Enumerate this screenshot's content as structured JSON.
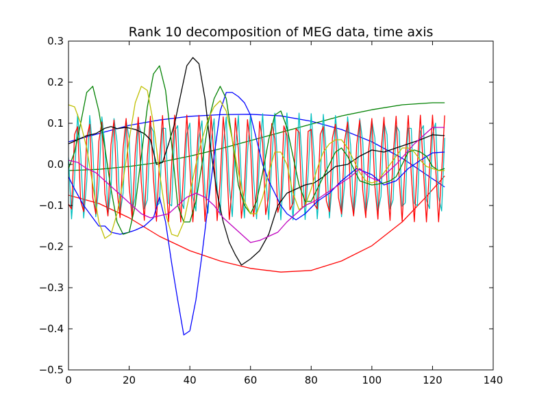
{
  "chart_data": {
    "type": "line",
    "title": "Rank 10 decomposition of MEG data, time axis",
    "xlabel": "",
    "ylabel": "",
    "xlim": [
      0,
      140
    ],
    "ylim": [
      -0.5,
      0.3
    ],
    "grid": false,
    "legend": "none",
    "x_ticks": [
      0,
      20,
      40,
      60,
      80,
      100,
      120,
      140
    ],
    "x_tick_labels": [
      "0",
      "20",
      "40",
      "60",
      "80",
      "100",
      "120",
      "140"
    ],
    "y_ticks": [
      0.3,
      0.2,
      0.1,
      0.0,
      -0.1,
      -0.2,
      -0.3,
      -0.4,
      -0.5
    ],
    "y_tick_labels": [
      "0.3",
      "0.2",
      "0.1",
      "0.0",
      "−0.1",
      "−0.2",
      "−0.3",
      "−0.4",
      "−0.5"
    ],
    "x_start": 0,
    "x_step": 1,
    "series": [
      {
        "name": "red-smooth",
        "color": "#ff0000",
        "points": [
          [
            0,
            -0.075
          ],
          [
            10,
            -0.095
          ],
          [
            20,
            -0.13
          ],
          [
            30,
            -0.175
          ],
          [
            40,
            -0.21
          ],
          [
            50,
            -0.235
          ],
          [
            60,
            -0.253
          ],
          [
            70,
            -0.262
          ],
          [
            80,
            -0.258
          ],
          [
            90,
            -0.235
          ],
          [
            100,
            -0.198
          ],
          [
            110,
            -0.14
          ],
          [
            118,
            -0.078
          ],
          [
            124,
            -0.028
          ]
        ]
      },
      {
        "name": "blue-smooth",
        "color": "#0000ff",
        "points": [
          [
            0,
            0.055
          ],
          [
            10,
            0.075
          ],
          [
            20,
            0.095
          ],
          [
            30,
            0.108
          ],
          [
            40,
            0.117
          ],
          [
            50,
            0.121
          ],
          [
            60,
            0.122
          ],
          [
            70,
            0.118
          ],
          [
            80,
            0.105
          ],
          [
            90,
            0.085
          ],
          [
            100,
            0.055
          ],
          [
            110,
            0.015
          ],
          [
            118,
            -0.025
          ],
          [
            124,
            -0.055
          ]
        ]
      },
      {
        "name": "green-smooth",
        "color": "#008000",
        "points": [
          [
            0,
            -0.015
          ],
          [
            10,
            -0.012
          ],
          [
            20,
            -0.005
          ],
          [
            30,
            0.005
          ],
          [
            40,
            0.02
          ],
          [
            50,
            0.038
          ],
          [
            60,
            0.058
          ],
          [
            70,
            0.078
          ],
          [
            80,
            0.098
          ],
          [
            90,
            0.118
          ],
          [
            100,
            0.133
          ],
          [
            110,
            0.145
          ],
          [
            120,
            0.15
          ],
          [
            124,
            0.15
          ]
        ]
      },
      {
        "name": "cyan-oscillation",
        "color": "#00bfbf",
        "oscillation": {
          "x0": 0,
          "x1": 124,
          "period": 4.05,
          "amplitude": 0.13,
          "center": -0.005,
          "phase": 1.4
        }
      },
      {
        "name": "red-oscillation",
        "color": "#ff0000",
        "oscillation": {
          "x0": 0,
          "x1": 124,
          "period": 4.05,
          "amplitude": 0.13,
          "center": -0.01,
          "phase": 2.3
        }
      },
      {
        "name": "blue-wave",
        "color": "#0000ff",
        "points": [
          [
            0,
            -0.03
          ],
          [
            2,
            -0.06
          ],
          [
            5,
            -0.1
          ],
          [
            8,
            -0.13
          ],
          [
            10,
            -0.15
          ],
          [
            12,
            -0.15
          ],
          [
            14,
            -0.165
          ],
          [
            17,
            -0.17
          ],
          [
            20,
            -0.165
          ],
          [
            22,
            -0.16
          ],
          [
            25,
            -0.15
          ],
          [
            28,
            -0.13
          ],
          [
            30,
            -0.08
          ],
          [
            32,
            -0.14
          ],
          [
            34,
            -0.24
          ],
          [
            36,
            -0.33
          ],
          [
            38,
            -0.415
          ],
          [
            40,
            -0.405
          ],
          [
            42,
            -0.33
          ],
          [
            44,
            -0.22
          ],
          [
            46,
            -0.1
          ],
          [
            48,
            0.02
          ],
          [
            50,
            0.13
          ],
          [
            52,
            0.175
          ],
          [
            54,
            0.175
          ],
          [
            56,
            0.165
          ],
          [
            58,
            0.15
          ],
          [
            60,
            0.12
          ],
          [
            62,
            0.06
          ],
          [
            64,
            0.0
          ],
          [
            66,
            -0.04
          ],
          [
            68,
            -0.07
          ],
          [
            70,
            -0.1
          ],
          [
            72,
            -0.12
          ],
          [
            75,
            -0.135
          ],
          [
            78,
            -0.12
          ],
          [
            82,
            -0.09
          ],
          [
            86,
            -0.07
          ],
          [
            90,
            -0.04
          ],
          [
            95,
            -0.01
          ],
          [
            100,
            -0.025
          ],
          [
            104,
            -0.05
          ],
          [
            108,
            -0.04
          ],
          [
            112,
            -0.01
          ],
          [
            116,
            0.01
          ],
          [
            120,
            0.028
          ],
          [
            124,
            0.03
          ]
        ]
      },
      {
        "name": "black-wave",
        "color": "#000000",
        "points": [
          [
            0,
            0.05
          ],
          [
            3,
            0.06
          ],
          [
            6,
            0.07
          ],
          [
            9,
            0.075
          ],
          [
            12,
            0.088
          ],
          [
            14,
            0.092
          ],
          [
            16,
            0.087
          ],
          [
            19,
            0.09
          ],
          [
            22,
            0.085
          ],
          [
            25,
            0.075
          ],
          [
            27,
            0.06
          ],
          [
            29,
            0.0
          ],
          [
            31,
            0.005
          ],
          [
            33,
            0.05
          ],
          [
            35,
            0.1
          ],
          [
            37,
            0.17
          ],
          [
            39,
            0.24
          ],
          [
            41,
            0.26
          ],
          [
            43,
            0.245
          ],
          [
            45,
            0.16
          ],
          [
            47,
            0.03
          ],
          [
            49,
            -0.07
          ],
          [
            51,
            -0.14
          ],
          [
            53,
            -0.19
          ],
          [
            55,
            -0.22
          ],
          [
            57,
            -0.245
          ],
          [
            60,
            -0.23
          ],
          [
            63,
            -0.21
          ],
          [
            66,
            -0.17
          ],
          [
            69,
            -0.1
          ],
          [
            72,
            -0.07
          ],
          [
            75,
            -0.06
          ],
          [
            78,
            -0.05
          ],
          [
            81,
            -0.045
          ],
          [
            84,
            -0.03
          ],
          [
            88,
            -0.005
          ],
          [
            92,
            0.0
          ],
          [
            96,
            0.02
          ],
          [
            100,
            0.035
          ],
          [
            104,
            0.03
          ],
          [
            108,
            0.04
          ],
          [
            112,
            0.05
          ],
          [
            116,
            0.06
          ],
          [
            120,
            0.072
          ],
          [
            124,
            0.07
          ]
        ]
      },
      {
        "name": "green-wave",
        "color": "#008000",
        "points": [
          [
            0,
            -0.01
          ],
          [
            2,
            0.03
          ],
          [
            4,
            0.1
          ],
          [
            6,
            0.175
          ],
          [
            8,
            0.19
          ],
          [
            10,
            0.13
          ],
          [
            12,
            0.04
          ],
          [
            14,
            -0.06
          ],
          [
            16,
            -0.14
          ],
          [
            18,
            -0.17
          ],
          [
            20,
            -0.165
          ],
          [
            22,
            -0.1
          ],
          [
            24,
            0.02
          ],
          [
            26,
            0.14
          ],
          [
            28,
            0.22
          ],
          [
            30,
            0.24
          ],
          [
            32,
            0.18
          ],
          [
            34,
            0.05
          ],
          [
            36,
            -0.1
          ],
          [
            38,
            -0.14
          ],
          [
            40,
            -0.14
          ],
          [
            42,
            -0.09
          ],
          [
            44,
            0.0
          ],
          [
            46,
            0.1
          ],
          [
            48,
            0.16
          ],
          [
            50,
            0.19
          ],
          [
            52,
            0.16
          ],
          [
            54,
            0.06
          ],
          [
            56,
            -0.05
          ],
          [
            58,
            -0.1
          ],
          [
            60,
            -0.12
          ],
          [
            62,
            -0.09
          ],
          [
            64,
            -0.02
          ],
          [
            66,
            0.06
          ],
          [
            68,
            0.12
          ],
          [
            70,
            0.13
          ],
          [
            72,
            0.09
          ],
          [
            74,
            0.02
          ],
          [
            76,
            -0.05
          ],
          [
            78,
            -0.09
          ],
          [
            80,
            -0.09
          ],
          [
            82,
            -0.06
          ],
          [
            84,
            -0.03
          ],
          [
            86,
            0.0
          ],
          [
            88,
            0.03
          ],
          [
            90,
            0.04
          ],
          [
            92,
            0.02
          ],
          [
            94,
            -0.01
          ],
          [
            96,
            -0.04
          ],
          [
            98,
            -0.045
          ],
          [
            100,
            -0.05
          ],
          [
            102,
            -0.048
          ],
          [
            104,
            -0.045
          ],
          [
            106,
            -0.04
          ],
          [
            108,
            -0.03
          ],
          [
            110,
            0.0
          ],
          [
            112,
            0.03
          ],
          [
            114,
            0.035
          ],
          [
            116,
            0.03
          ],
          [
            118,
            0.02
          ],
          [
            120,
            -0.005
          ],
          [
            122,
            -0.015
          ],
          [
            124,
            -0.01
          ]
        ]
      },
      {
        "name": "yellow-wave",
        "color": "#bfbf00",
        "points": [
          [
            0,
            0.145
          ],
          [
            2,
            0.14
          ],
          [
            4,
            0.1
          ],
          [
            6,
            0.04
          ],
          [
            8,
            -0.05
          ],
          [
            10,
            -0.14
          ],
          [
            12,
            -0.18
          ],
          [
            14,
            -0.17
          ],
          [
            16,
            -0.12
          ],
          [
            18,
            -0.04
          ],
          [
            20,
            0.06
          ],
          [
            22,
            0.15
          ],
          [
            24,
            0.19
          ],
          [
            26,
            0.18
          ],
          [
            28,
            0.1
          ],
          [
            30,
            -0.02
          ],
          [
            32,
            -0.12
          ],
          [
            34,
            -0.17
          ],
          [
            36,
            -0.175
          ],
          [
            38,
            -0.14
          ],
          [
            40,
            -0.07
          ],
          [
            42,
            0.0
          ],
          [
            44,
            0.06
          ],
          [
            46,
            0.11
          ],
          [
            48,
            0.14
          ],
          [
            50,
            0.155
          ],
          [
            52,
            0.13
          ],
          [
            54,
            0.06
          ],
          [
            56,
            -0.02
          ],
          [
            58,
            -0.09
          ],
          [
            60,
            -0.12
          ],
          [
            62,
            -0.12
          ],
          [
            64,
            -0.08
          ],
          [
            66,
            -0.02
          ],
          [
            68,
            0.03
          ],
          [
            70,
            0.03
          ],
          [
            72,
            0.0
          ],
          [
            74,
            -0.07
          ],
          [
            76,
            -0.11
          ],
          [
            78,
            -0.1
          ],
          [
            80,
            -0.06
          ],
          [
            82,
            -0.01
          ],
          [
            84,
            0.03
          ],
          [
            86,
            0.05
          ],
          [
            88,
            0.06
          ],
          [
            90,
            0.06
          ],
          [
            92,
            0.04
          ],
          [
            94,
            0.01
          ],
          [
            96,
            -0.02
          ],
          [
            98,
            -0.04
          ],
          [
            100,
            -0.045
          ],
          [
            102,
            -0.04
          ],
          [
            104,
            -0.02
          ],
          [
            106,
            0.0
          ],
          [
            108,
            0.02
          ],
          [
            110,
            0.04
          ],
          [
            112,
            0.04
          ],
          [
            114,
            0.03
          ],
          [
            116,
            0.01
          ],
          [
            118,
            -0.005
          ],
          [
            120,
            -0.01
          ],
          [
            122,
            -0.015
          ],
          [
            124,
            -0.015
          ]
        ]
      },
      {
        "name": "magenta-wave",
        "color": "#bf00bf",
        "points": [
          [
            0,
            0.01
          ],
          [
            3,
            0.005
          ],
          [
            6,
            -0.01
          ],
          [
            9,
            -0.02
          ],
          [
            12,
            -0.04
          ],
          [
            15,
            -0.06
          ],
          [
            18,
            -0.08
          ],
          [
            21,
            -0.1
          ],
          [
            24,
            -0.12
          ],
          [
            27,
            -0.13
          ],
          [
            30,
            -0.125
          ],
          [
            33,
            -0.12
          ],
          [
            36,
            -0.1
          ],
          [
            39,
            -0.08
          ],
          [
            42,
            -0.07
          ],
          [
            45,
            -0.08
          ],
          [
            48,
            -0.1
          ],
          [
            51,
            -0.13
          ],
          [
            54,
            -0.15
          ],
          [
            57,
            -0.17
          ],
          [
            60,
            -0.19
          ],
          [
            63,
            -0.185
          ],
          [
            66,
            -0.175
          ],
          [
            69,
            -0.165
          ],
          [
            72,
            -0.14
          ],
          [
            75,
            -0.12
          ],
          [
            78,
            -0.1
          ],
          [
            81,
            -0.09
          ],
          [
            84,
            -0.075
          ],
          [
            87,
            -0.06
          ],
          [
            90,
            -0.045
          ],
          [
            93,
            -0.03
          ],
          [
            96,
            -0.01
          ],
          [
            99,
            -0.03
          ],
          [
            102,
            -0.04
          ],
          [
            105,
            -0.02
          ],
          [
            108,
            0.0
          ],
          [
            111,
            0.025
          ],
          [
            114,
            0.05
          ],
          [
            117,
            0.07
          ],
          [
            120,
            0.09
          ],
          [
            124,
            0.09
          ]
        ]
      }
    ]
  }
}
